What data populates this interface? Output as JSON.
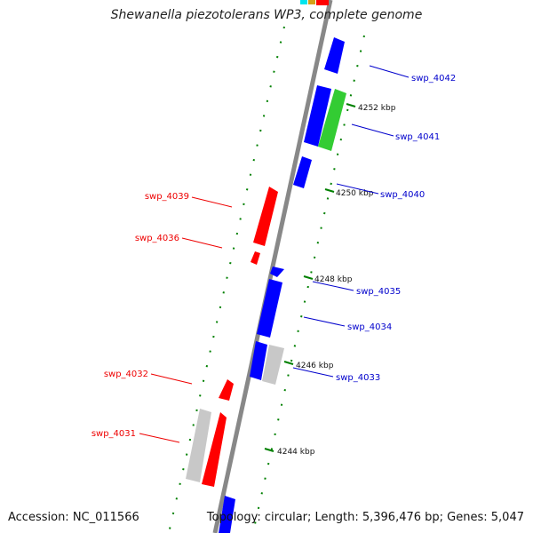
{
  "title": "Shewanella piezotolerans WP3, complete genome",
  "footer": {
    "accession": "Accession: NC_011566",
    "info": "Topology: circular; Length: 5,396,476 bp; Genes: 5,047"
  },
  "tick_labels": [
    "4252 kbp",
    "4250 kbp",
    "4248 kbp",
    "4246 kbp",
    "4244 kbp"
  ],
  "genes_reverse": [
    "swp_4039",
    "swp_4036",
    "swp_4032",
    "swp_4031"
  ],
  "genes_forward": [
    "swp_4042",
    "swp_4041",
    "swp_4040",
    "swp_4035",
    "swp_4034",
    "swp_4033"
  ],
  "colors": {
    "forward_strand": "#0000ff",
    "reverse_strand": "#ff0000",
    "highlight": "#33cc33",
    "other": "#c8c8c8",
    "tick": "#008000",
    "backbone": "#888888"
  }
}
